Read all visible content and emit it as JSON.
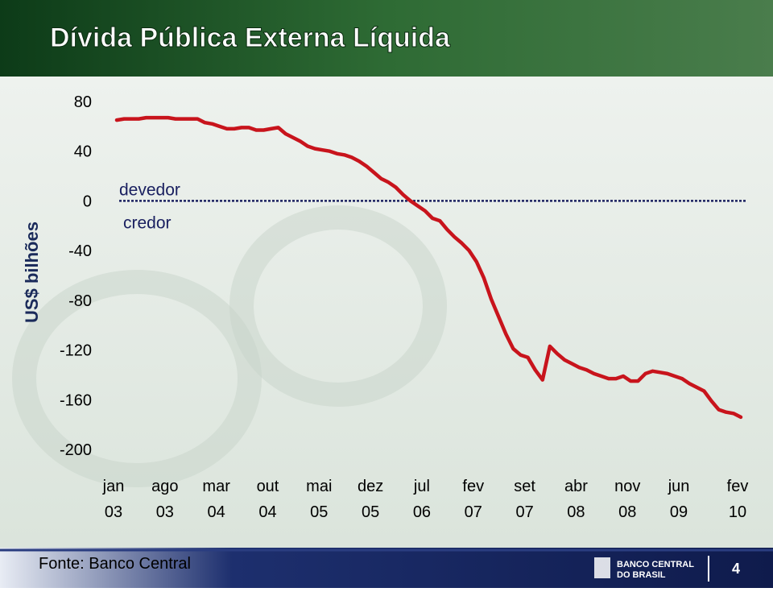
{
  "chart_data": {
    "type": "line",
    "title": "Dívida Pública Externa Líquida",
    "y_label": "US$ bilhões",
    "annotations": [
      "devedor",
      "credor"
    ],
    "reference_line": 0,
    "ylim": [
      -200,
      80
    ],
    "yticks": [
      80,
      40,
      0,
      -40,
      -80,
      -120,
      -160,
      -200
    ],
    "categories": [
      "jan 03",
      null,
      null,
      null,
      null,
      null,
      null,
      "ago 03",
      null,
      null,
      null,
      null,
      null,
      null,
      "mar 04",
      null,
      null,
      null,
      null,
      null,
      null,
      "out 04",
      null,
      null,
      null,
      null,
      null,
      null,
      "mai 05",
      null,
      null,
      null,
      null,
      null,
      null,
      "dez 05",
      null,
      null,
      null,
      null,
      null,
      null,
      "jul 06",
      null,
      null,
      null,
      null,
      null,
      null,
      "fev 07",
      null,
      null,
      null,
      null,
      null,
      null,
      "set 07",
      null,
      null,
      null,
      null,
      null,
      null,
      "abr 08",
      null,
      null,
      null,
      null,
      null,
      null,
      "nov 08",
      null,
      null,
      null,
      null,
      null,
      null,
      "jun 09",
      null,
      null,
      null,
      null,
      null,
      null,
      null,
      "fev 10"
    ],
    "series": [
      {
        "color": "#c8141c",
        "values": [
          65,
          66,
          66,
          66,
          67,
          67,
          67,
          67,
          66,
          66,
          66,
          66,
          63,
          62,
          60,
          58,
          58,
          59,
          59,
          57,
          57,
          58,
          59,
          54,
          51,
          48,
          44,
          42,
          41,
          40,
          38,
          37,
          35,
          32,
          28,
          23,
          18,
          15,
          11,
          5,
          0,
          -4,
          -8,
          -14,
          -16,
          -23,
          -29,
          -34,
          -40,
          -49,
          -62,
          -79,
          -93,
          -107,
          -119,
          -124,
          -126,
          -136,
          -144,
          -117,
          -123,
          -128,
          -131,
          -134,
          -136,
          -139,
          -141,
          -143,
          -143,
          -141,
          -145,
          -145,
          -139,
          -137,
          -138,
          -139,
          -141,
          -143,
          -147,
          -150,
          -153,
          -161,
          -168,
          -170,
          -171,
          -174
        ]
      }
    ]
  },
  "footer": {
    "source": "Fonte: Banco Central",
    "logo": [
      "BANCO CENTRAL",
      "DO BRASIL"
    ],
    "page": "4"
  }
}
